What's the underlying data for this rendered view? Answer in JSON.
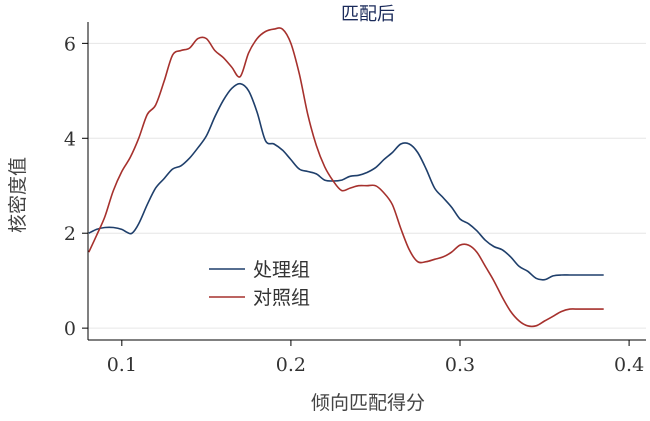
{
  "chart_data": {
    "type": "line",
    "title": "匹配后",
    "xlabel": "倾向匹配得分",
    "ylabel": "核密度值",
    "xlim": [
      0.08,
      0.41
    ],
    "ylim": [
      -0.25,
      6.45
    ],
    "x_ticks": [
      0.1,
      0.2,
      0.3,
      0.4
    ],
    "x_tick_labels": [
      "0.1",
      "0.2",
      "0.3",
      "0.4"
    ],
    "y_ticks": [
      0,
      2,
      4,
      6
    ],
    "y_tick_labels": [
      "0",
      "2",
      "4",
      "6"
    ],
    "grid": true,
    "legend_position": "bottom-left inside",
    "colors": {
      "treated": "#1f3f6b",
      "control": "#a6312d",
      "axis": "#000000",
      "grid": "#e6e6e6",
      "title": "#1a2a5a"
    },
    "series": [
      {
        "name": "处理组",
        "color": "#1f3f6b",
        "x": [
          0.0805,
          0.085,
          0.09,
          0.095,
          0.1,
          0.103,
          0.106,
          0.11,
          0.115,
          0.12,
          0.125,
          0.13,
          0.135,
          0.14,
          0.145,
          0.15,
          0.155,
          0.16,
          0.165,
          0.17,
          0.175,
          0.18,
          0.185,
          0.19,
          0.195,
          0.2,
          0.205,
          0.21,
          0.215,
          0.22,
          0.225,
          0.23,
          0.235,
          0.24,
          0.245,
          0.25,
          0.255,
          0.26,
          0.265,
          0.27,
          0.275,
          0.28,
          0.285,
          0.29,
          0.295,
          0.3,
          0.305,
          0.31,
          0.315,
          0.32,
          0.325,
          0.33,
          0.335,
          0.34,
          0.345,
          0.35,
          0.355,
          0.36,
          0.365,
          0.37,
          0.375,
          0.38,
          0.385
        ],
        "y": [
          2.0,
          2.08,
          2.12,
          2.12,
          2.08,
          2.02,
          2.0,
          2.2,
          2.6,
          2.95,
          3.15,
          3.35,
          3.42,
          3.58,
          3.8,
          4.05,
          4.45,
          4.8,
          5.05,
          5.15,
          5.0,
          4.55,
          3.95,
          3.88,
          3.75,
          3.55,
          3.35,
          3.3,
          3.25,
          3.12,
          3.1,
          3.12,
          3.2,
          3.22,
          3.28,
          3.38,
          3.55,
          3.7,
          3.88,
          3.88,
          3.7,
          3.35,
          2.95,
          2.75,
          2.55,
          2.3,
          2.2,
          2.05,
          1.85,
          1.72,
          1.65,
          1.5,
          1.3,
          1.2,
          1.05,
          1.02,
          1.1,
          1.12,
          1.12,
          1.12,
          1.12,
          1.12,
          1.12
        ]
      },
      {
        "name": "对照组",
        "color": "#a6312d",
        "x": [
          0.0805,
          0.085,
          0.09,
          0.095,
          0.1,
          0.105,
          0.11,
          0.115,
          0.12,
          0.125,
          0.13,
          0.135,
          0.14,
          0.145,
          0.15,
          0.155,
          0.16,
          0.165,
          0.17,
          0.175,
          0.18,
          0.185,
          0.19,
          0.195,
          0.2,
          0.205,
          0.21,
          0.215,
          0.22,
          0.225,
          0.23,
          0.235,
          0.24,
          0.245,
          0.25,
          0.255,
          0.26,
          0.265,
          0.27,
          0.275,
          0.28,
          0.285,
          0.29,
          0.295,
          0.3,
          0.305,
          0.31,
          0.315,
          0.32,
          0.325,
          0.33,
          0.335,
          0.34,
          0.345,
          0.35,
          0.355,
          0.36,
          0.365,
          0.37,
          0.375,
          0.38,
          0.385
        ],
        "y": [
          1.6,
          1.95,
          2.35,
          2.9,
          3.3,
          3.6,
          4.0,
          4.5,
          4.7,
          5.2,
          5.75,
          5.85,
          5.9,
          6.1,
          6.1,
          5.85,
          5.7,
          5.5,
          5.3,
          5.8,
          6.1,
          6.25,
          6.3,
          6.3,
          6.0,
          5.35,
          4.5,
          3.85,
          3.4,
          3.1,
          2.9,
          2.95,
          3.0,
          3.0,
          3.0,
          2.85,
          2.6,
          2.1,
          1.65,
          1.4,
          1.4,
          1.45,
          1.5,
          1.6,
          1.75,
          1.75,
          1.6,
          1.3,
          1.0,
          0.65,
          0.35,
          0.15,
          0.05,
          0.05,
          0.15,
          0.25,
          0.35,
          0.4,
          0.4,
          0.4,
          0.4,
          0.4
        ]
      }
    ]
  }
}
